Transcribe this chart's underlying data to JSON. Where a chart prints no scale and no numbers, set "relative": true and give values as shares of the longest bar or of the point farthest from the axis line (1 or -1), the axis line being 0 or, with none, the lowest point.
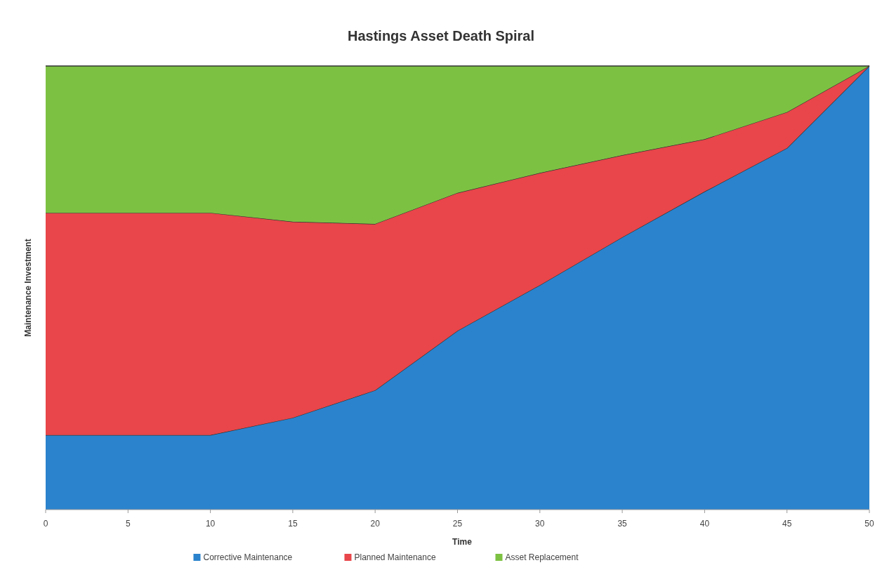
{
  "chart_data": {
    "type": "area",
    "title": "Hastings Asset Death Spiral",
    "xlabel": "Time",
    "ylabel": "Maintenance Investment",
    "relative": true,
    "stacked": true,
    "x": [
      0,
      5,
      10,
      15,
      20,
      25,
      30,
      35,
      40,
      45,
      50
    ],
    "xlim": [
      0,
      50
    ],
    "xticks": [
      0,
      5,
      10,
      15,
      20,
      25,
      30,
      35,
      40,
      45,
      50
    ],
    "legend": "bottom",
    "series": [
      {
        "name": "Corrective Maintenance",
        "color": "#2b83cd",
        "values": [
          0.168,
          0.168,
          0.168,
          0.207,
          0.269,
          0.403,
          0.506,
          0.614,
          0.717,
          0.815,
          1
        ]
      },
      {
        "name": "Planned Maintenance",
        "color": "#e8464a",
        "values": [
          0.501,
          0.501,
          0.501,
          0.442,
          0.375,
          0.311,
          0.253,
          0.185,
          0.118,
          0.081,
          0
        ]
      },
      {
        "name": "Asset Replacement",
        "color": "#7dc142",
        "values": [
          0.331,
          0.331,
          0.331,
          0.351,
          0.356,
          0.286,
          0.241,
          0.201,
          0.165,
          0.104,
          0
        ]
      }
    ]
  }
}
